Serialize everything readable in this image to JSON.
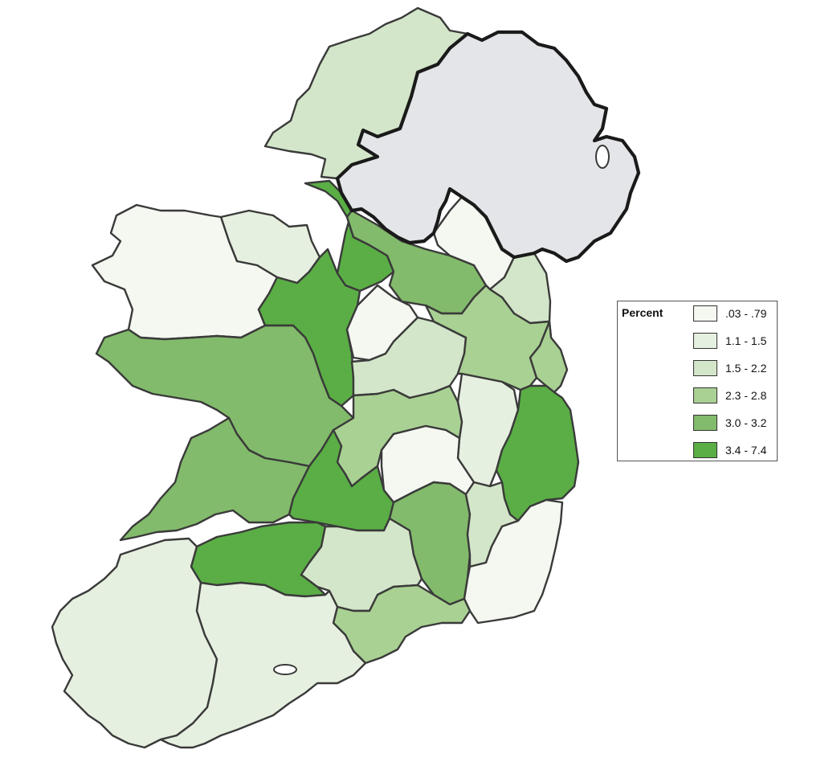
{
  "map": {
    "type": "choropleth",
    "region": "Ireland",
    "colors": {
      "c1": "#f4f8f0",
      "c2": "#e6f0e0",
      "c3": "#d3e6c9",
      "c4": "#a9d193",
      "c5": "#82bb6b",
      "c6": "#5aae45",
      "no_data": "#e4e5e8"
    }
  },
  "legend": {
    "title": "Percent",
    "items": [
      {
        "label": ".03 - .79",
        "color": "#f4f8f0"
      },
      {
        "label": "1.1 - 1.5",
        "color": "#e6f0e0"
      },
      {
        "label": "1.5 - 2.2",
        "color": "#d3e6c9"
      },
      {
        "label": "2.3 - 2.8",
        "color": "#a9d193"
      },
      {
        "label": "3.0 - 3.2",
        "color": "#82bb6b"
      },
      {
        "label": "3.4 - 7.4",
        "color": "#5aae45"
      }
    ]
  }
}
